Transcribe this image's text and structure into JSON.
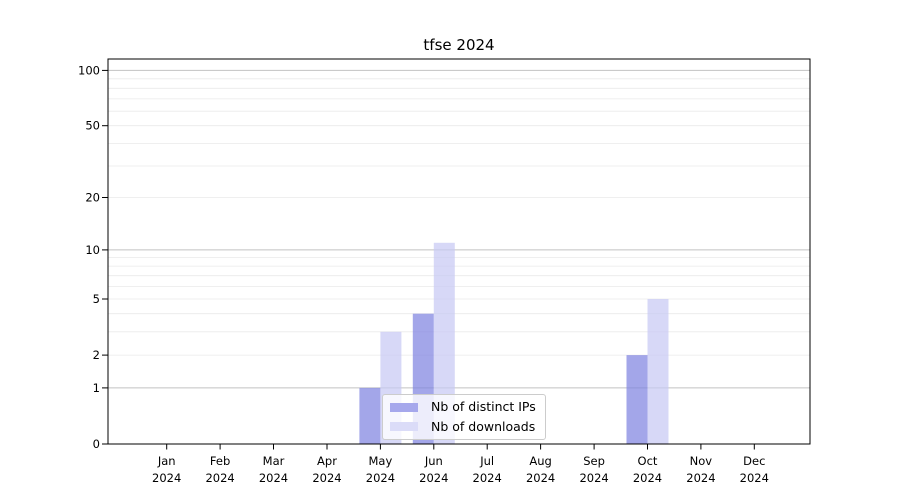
{
  "chart_data": {
    "type": "bar",
    "title": "tfse 2024",
    "categories": [
      "Jan 2024",
      "Feb 2024",
      "Mar 2024",
      "Apr 2024",
      "May 2024",
      "Jun 2024",
      "Jul 2024",
      "Aug 2024",
      "Sep 2024",
      "Oct 2024",
      "Nov 2024",
      "Dec 2024"
    ],
    "series": [
      {
        "name": "Nb of distinct IPs",
        "legend_color": "#a6a8ec",
        "fill": "rgba(128,131,224,0.72)",
        "values": [
          0,
          0,
          0,
          0,
          1,
          4,
          0,
          0,
          0,
          2,
          0,
          0
        ]
      },
      {
        "name": "Nb of downloads",
        "legend_color": "#dbdcf8",
        "fill": "rgba(199,201,244,0.72)",
        "values": [
          0,
          0,
          0,
          0,
          3,
          11,
          0,
          0,
          0,
          5,
          0,
          0
        ]
      }
    ],
    "xlabel": "",
    "ylabel": "",
    "yticks": [
      0,
      1,
      2,
      5,
      10,
      20,
      50,
      100
    ],
    "ylim": [
      0,
      115
    ],
    "yscale": "log10(1+y)",
    "major_gridlines": [
      1,
      10,
      100
    ],
    "minor_gridlines": [
      2,
      3,
      4,
      5,
      6,
      7,
      8,
      9,
      20,
      30,
      40,
      50,
      60,
      70,
      80,
      90
    ],
    "grid": true,
    "legend_position": "inside-bottom-center"
  },
  "colors": {
    "background": "#ffffff",
    "axis": "#000000",
    "major_grid": "#c2c2c2",
    "minor_grid": "#eaeaea",
    "legend_border": "#cccccc",
    "legend_background": "rgba(255,255,255,0.8)",
    "tick_label": "#000000"
  }
}
